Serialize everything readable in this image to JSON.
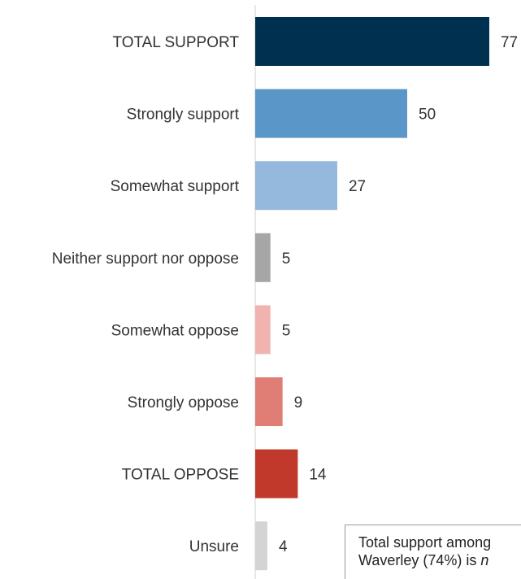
{
  "chart_data": {
    "type": "bar",
    "orientation": "horizontal",
    "categories": [
      "TOTAL SUPPORT",
      "Strongly support",
      "Somewhat support",
      "Neither support nor oppose",
      "Somewhat oppose",
      "Strongly oppose",
      "TOTAL OPPOSE",
      "Unsure"
    ],
    "values": [
      77,
      50,
      27,
      5,
      5,
      9,
      14,
      4
    ],
    "colors": [
      "#00304f",
      "#5b96c8",
      "#94b9dc",
      "#a6a6a6",
      "#f0b3b0",
      "#e07e76",
      "#c0392b",
      "#d4d4d4"
    ],
    "xlim": [
      0,
      100
    ],
    "grid": false,
    "legend": "none",
    "title": "",
    "xlabel": "",
    "ylabel": ""
  },
  "callout": {
    "line1": "Total support among",
    "line2_prefix": "Waverley (74%) is ",
    "line2_emph": "n"
  }
}
